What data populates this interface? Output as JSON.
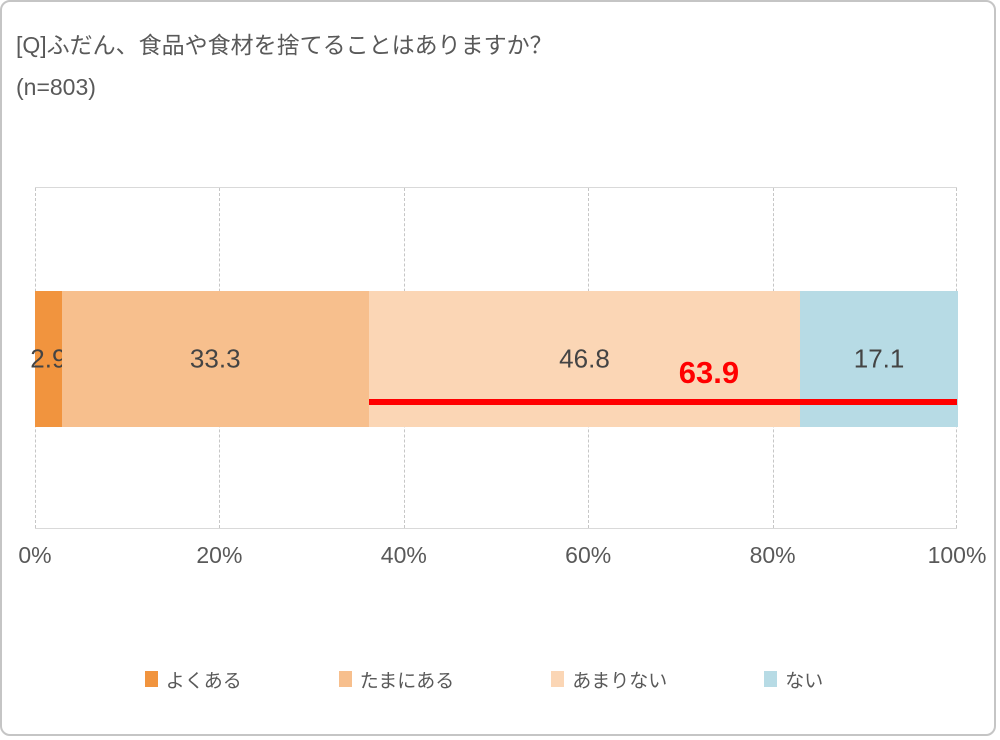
{
  "title": "[Q]ふだん、食品や食材を捨てることはありますか？",
  "sample_size": "(n=803)",
  "text_color": "#595959",
  "data_label_color": "#444444",
  "gridline_color": "#c6c6c6",
  "axis_line_color": "#d9d9d9",
  "chart_data": {
    "type": "bar",
    "orientation": "horizontal-stacked",
    "title": "[Q]ふだん、食品や食材を捨てることはありますか？",
    "categories": [
      "よくある",
      "たまにある",
      "あまりない",
      "ない"
    ],
    "values": [
      2.9,
      33.3,
      46.8,
      17.1
    ],
    "colors": [
      "#F1943E",
      "#F7BF8D",
      "#FBD6B5",
      "#B7DBE5"
    ],
    "xlabel": "",
    "ylabel": "",
    "xlim": [
      0,
      100
    ],
    "x_ticks": [
      "0%",
      "20%",
      "40%",
      "60%",
      "80%",
      "100%"
    ],
    "x_tick_values": [
      0,
      20,
      40,
      60,
      80,
      100
    ],
    "grid": "vertical-dashed",
    "legend_position": "bottom",
    "annotation": {
      "label": "63.9",
      "color": "#FF0000",
      "span_start_pct": 36.2,
      "span_end_pct": 100,
      "label_center_pct": 73.1
    }
  }
}
